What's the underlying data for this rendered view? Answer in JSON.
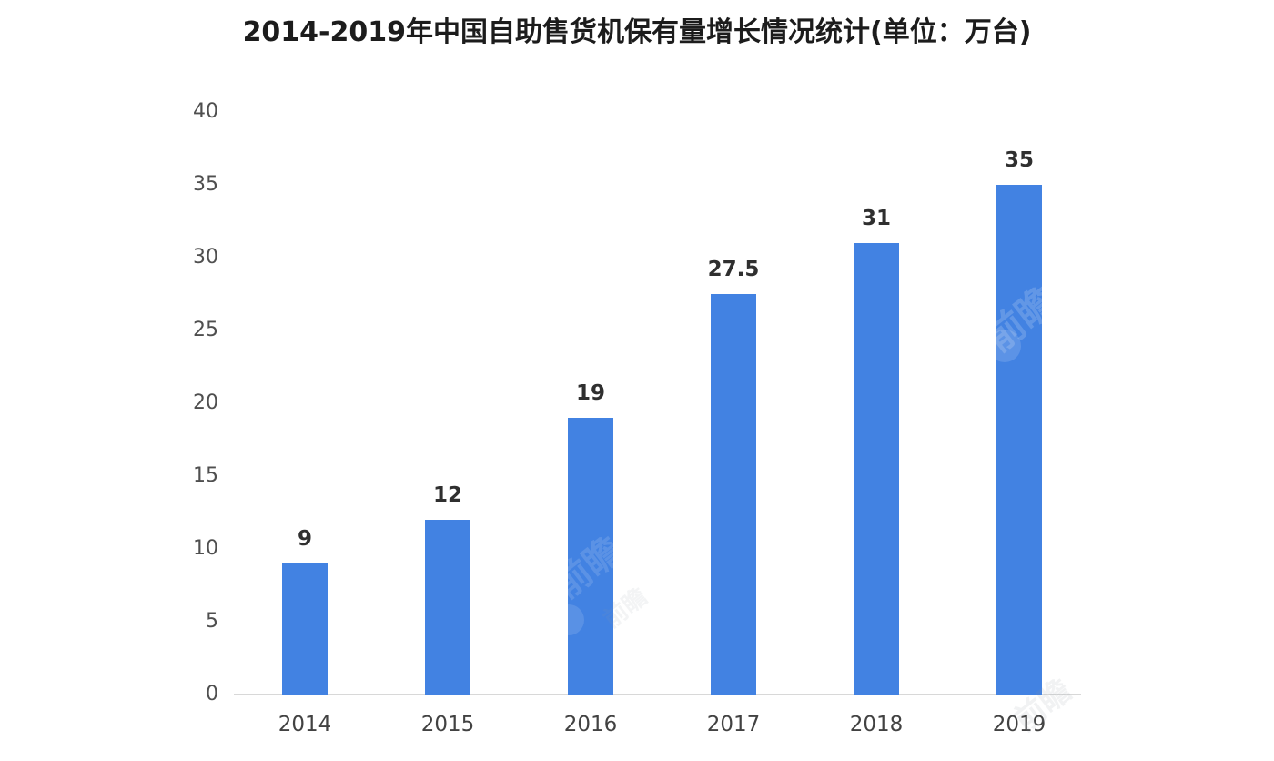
{
  "chart_data": {
    "type": "bar",
    "title": "2014-2019年中国自助售货机保有量增长情况统计(单位：万台)",
    "categories": [
      "2014",
      "2015",
      "2016",
      "2017",
      "2018",
      "2019"
    ],
    "values": [
      9,
      12,
      19,
      27.5,
      31,
      35
    ],
    "value_labels": [
      "9",
      "12",
      "19",
      "27.5",
      "31",
      "35"
    ],
    "xlabel": "",
    "ylabel": "",
    "ylim": [
      0,
      40
    ],
    "yticks": [
      0,
      5,
      10,
      15,
      20,
      25,
      30,
      35,
      40
    ],
    "bar_color": "#4282e2",
    "axis_line_color": "#d8d8d8",
    "grid": false,
    "legend_position": "none"
  },
  "watermark": {
    "text": "前瞻",
    "color_on_bar": "#ffffff",
    "color_on_bg": "#8f98a3"
  }
}
